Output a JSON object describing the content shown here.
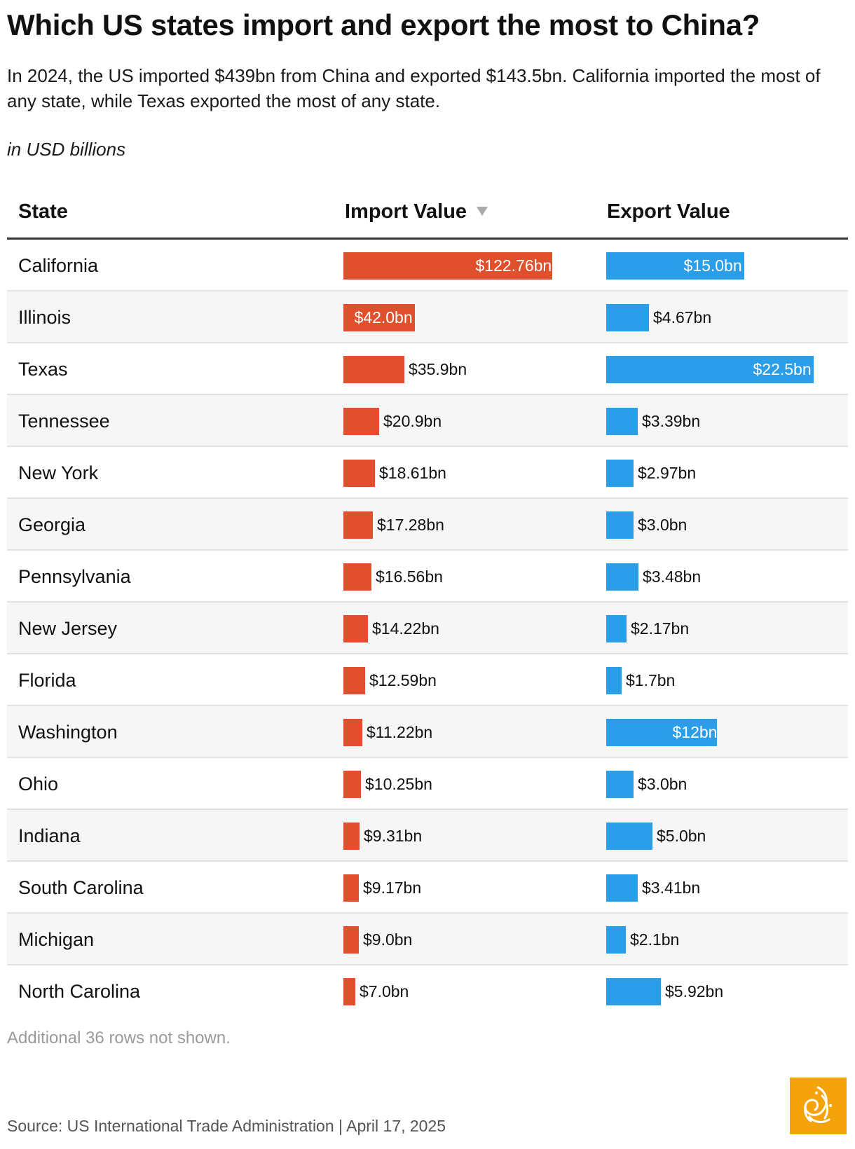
{
  "title": "Which US states import and export the most to China?",
  "subtitle": "In 2024, the US imported $439bn from China and exported $143.5bn. California imported the most of any state, while Texas exported the most of any state.",
  "units": "in USD billions",
  "footnote": "Additional 36 rows not shown.",
  "source": "Source: US International Trade Administration | April 17, 2025",
  "colors": {
    "import": "#e0502c",
    "export": "#2a9ee8",
    "logo": "#f5a30a"
  },
  "logo_icon": "al-jazeera-logo-icon",
  "chart_data": {
    "type": "table",
    "columns": [
      "State",
      "Import Value",
      "Export Value"
    ],
    "sorted_by": "Import Value",
    "sort_order": "descending",
    "rows": [
      {
        "state": "California",
        "import": 122.76,
        "import_label": "$122.76bn",
        "export": 15.0,
        "export_label": "$15.0bn"
      },
      {
        "state": "Illinois",
        "import": 42.0,
        "import_label": "$42.0bn",
        "export": 4.67,
        "export_label": "$4.67bn"
      },
      {
        "state": "Texas",
        "import": 35.9,
        "import_label": "$35.9bn",
        "export": 22.5,
        "export_label": "$22.5bn"
      },
      {
        "state": "Tennessee",
        "import": 20.9,
        "import_label": "$20.9bn",
        "export": 3.39,
        "export_label": "$3.39bn"
      },
      {
        "state": "New York",
        "import": 18.61,
        "import_label": "$18.61bn",
        "export": 2.97,
        "export_label": "$2.97bn"
      },
      {
        "state": "Georgia",
        "import": 17.28,
        "import_label": "$17.28bn",
        "export": 3.0,
        "export_label": "$3.0bn"
      },
      {
        "state": "Pennsylvania",
        "import": 16.56,
        "import_label": "$16.56bn",
        "export": 3.48,
        "export_label": "$3.48bn"
      },
      {
        "state": "New Jersey",
        "import": 14.22,
        "import_label": "$14.22bn",
        "export": 2.17,
        "export_label": "$2.17bn"
      },
      {
        "state": "Florida",
        "import": 12.59,
        "import_label": "$12.59bn",
        "export": 1.7,
        "export_label": "$1.7bn"
      },
      {
        "state": "Washington",
        "import": 11.22,
        "import_label": "$11.22bn",
        "export": 12.0,
        "export_label": "$12bn"
      },
      {
        "state": "Ohio",
        "import": 10.25,
        "import_label": "$10.25bn",
        "export": 3.0,
        "export_label": "$3.0bn"
      },
      {
        "state": "Indiana",
        "import": 9.31,
        "import_label": "$9.31bn",
        "export": 5.0,
        "export_label": "$5.0bn"
      },
      {
        "state": "South Carolina",
        "import": 9.17,
        "import_label": "$9.17bn",
        "export": 3.41,
        "export_label": "$3.41bn"
      },
      {
        "state": "Michigan",
        "import": 9.0,
        "import_label": "$9.0bn",
        "export": 2.1,
        "export_label": "$2.1bn"
      },
      {
        "state": "North Carolina",
        "import": 7.0,
        "import_label": "$7.0bn",
        "export": 5.92,
        "export_label": "$5.92bn"
      }
    ]
  }
}
